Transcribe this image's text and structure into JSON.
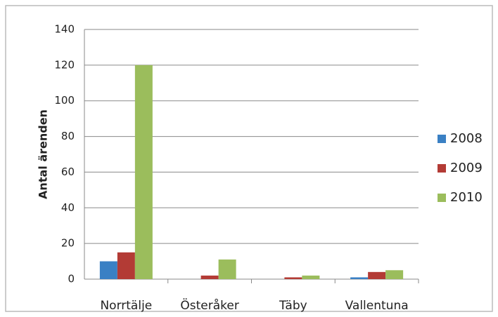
{
  "chart_data": {
    "type": "bar",
    "y_label": "Antal ärenden",
    "categories": [
      "Norrtälje",
      "Österåker",
      "Täby",
      "Vallentuna"
    ],
    "series": [
      {
        "name": "2008",
        "color": "#3a80c4",
        "values": [
          10,
          0,
          0,
          1
        ]
      },
      {
        "name": "2009",
        "color": "#b33b35",
        "values": [
          15,
          2,
          1,
          4
        ]
      },
      {
        "name": "2010",
        "color": "#9bbd5c",
        "values": [
          120,
          11,
          2,
          5
        ]
      }
    ],
    "ylim": [
      0,
      140
    ],
    "yticks": [
      0,
      20,
      40,
      60,
      80,
      100,
      120,
      140
    ],
    "grid": true,
    "legend": "right"
  }
}
